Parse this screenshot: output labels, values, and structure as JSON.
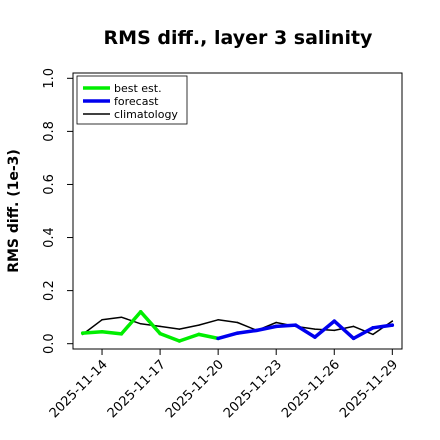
{
  "chart_data": {
    "type": "line",
    "title": "RMS diff., layer 3 salinity",
    "xlabel": "",
    "ylabel": "RMS diff. (1e-3)",
    "ylim": [
      -0.02,
      1.02
    ],
    "y_ticks": [
      0.0,
      0.2,
      0.4,
      0.6,
      0.8,
      1.0
    ],
    "y_tick_labels": [
      "0.0",
      "0.2",
      "0.4",
      "0.6",
      "0.8",
      "1.0"
    ],
    "xlim": [
      "2025-11-12T12:00",
      "2025-11-29T12:00"
    ],
    "x_ticks": [
      "2025-11-14",
      "2025-11-17",
      "2025-11-20",
      "2025-11-23",
      "2025-11-26",
      "2025-11-29"
    ],
    "x_tick_colors": [
      "#000000",
      "#000000",
      "#228B22",
      "#000000",
      "#000000",
      "#000000"
    ],
    "legend_position": "top-left",
    "grid": false,
    "series": [
      {
        "name": "best est.",
        "color": "#00ee00",
        "width": 3.5,
        "x": [
          "2025-11-13",
          "2025-11-14",
          "2025-11-15",
          "2025-11-16",
          "2025-11-17",
          "2025-11-18",
          "2025-11-19",
          "2025-11-20"
        ],
        "values": [
          0.04,
          0.045,
          0.037,
          0.12,
          0.038,
          0.01,
          0.035,
          0.02
        ]
      },
      {
        "name": "forecast",
        "color": "#0000ee",
        "width": 3.5,
        "x": [
          "2025-11-20",
          "2025-11-21",
          "2025-11-22",
          "2025-11-23",
          "2025-11-24",
          "2025-11-25",
          "2025-11-26",
          "2025-11-27",
          "2025-11-28",
          "2025-11-29"
        ],
        "values": [
          0.02,
          0.04,
          0.05,
          0.065,
          0.07,
          0.025,
          0.085,
          0.02,
          0.06,
          0.07
        ]
      },
      {
        "name": "climatology",
        "color": "#000000",
        "width": 1.5,
        "x": [
          "2025-11-13",
          "2025-11-14",
          "2025-11-15",
          "2025-11-16",
          "2025-11-17",
          "2025-11-18",
          "2025-11-19",
          "2025-11-20",
          "2025-11-21",
          "2025-11-22",
          "2025-11-23",
          "2025-11-24",
          "2025-11-25",
          "2025-11-26",
          "2025-11-27",
          "2025-11-28",
          "2025-11-29"
        ],
        "values": [
          0.035,
          0.09,
          0.1,
          0.075,
          0.065,
          0.055,
          0.07,
          0.09,
          0.08,
          0.05,
          0.08,
          0.065,
          0.055,
          0.05,
          0.065,
          0.035,
          0.085
        ]
      }
    ]
  }
}
